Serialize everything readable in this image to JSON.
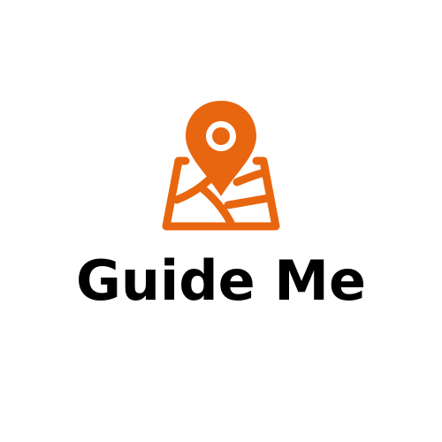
{
  "brand": {
    "name": "Guide Me",
    "icon": "map-pin-icon",
    "accent_color": "#E8660F",
    "text_color": "#000000"
  }
}
